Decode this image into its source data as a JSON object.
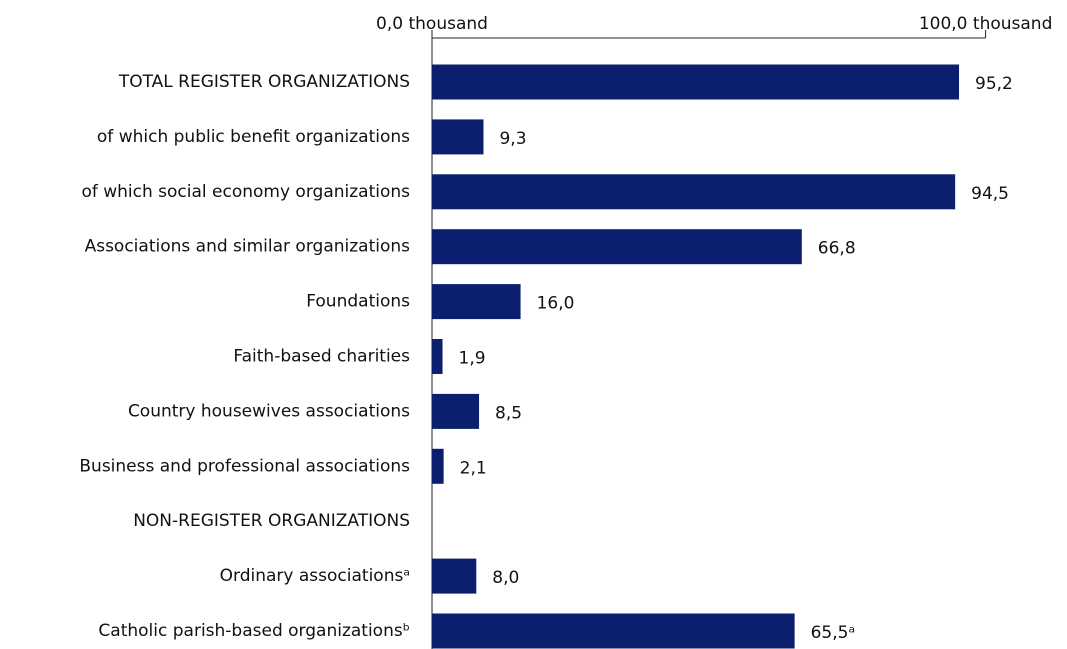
{
  "chart_data": {
    "type": "bar",
    "orientation": "horizontal",
    "categories": [
      "TOTAL REGISTER ORGANIZATIONS",
      "of which public benefit organizations",
      "of which social economy organizations",
      "Associations and similar organizations",
      "Foundations",
      "Faith-based charities",
      "Country housewives associations",
      "Business and professional associations",
      "NON-REGISTER ORGANIZATIONS",
      "Ordinary associationsᵃ",
      "Catholic parish-based organizationsᵇ"
    ],
    "values": [
      95.2,
      9.3,
      94.5,
      66.8,
      16.0,
      1.9,
      8.5,
      2.1,
      null,
      8.0,
      65.5
    ],
    "value_labels": [
      "95,2",
      "9,3",
      "94,5",
      "66,8",
      "16,0",
      "1,9",
      "8,5",
      "2,1",
      null,
      "8,0",
      "65,5ᵃ"
    ],
    "color": "#0b1f6e",
    "xlim": [
      0,
      100
    ],
    "xticks": [
      {
        "value": 0,
        "label": "0,0 thousand"
      },
      {
        "value": 100,
        "label": "100,0 thousand"
      }
    ]
  }
}
